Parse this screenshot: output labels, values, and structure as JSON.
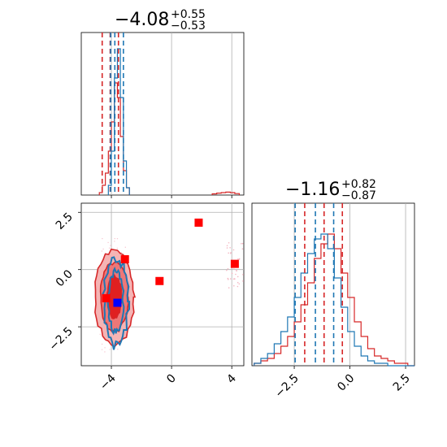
{
  "chart_data": {
    "type": "corner",
    "titles": {
      "param_1": {
        "median": "−4.08",
        "plus": "+0.55",
        "minus": "−0.53"
      },
      "param_2": {
        "median": "−1.16",
        "plus": "+0.82",
        "minus": "−0.87"
      }
    },
    "axes": {
      "x_range": [
        -6.0,
        4.8
      ],
      "y_range": [
        -4.2,
        2.9
      ],
      "x_ticks": [
        {
          "value": -4,
          "label": "−4"
        },
        {
          "value": 0,
          "label": "0"
        },
        {
          "value": 4,
          "label": "4"
        }
      ],
      "y_ticks": [
        {
          "value": 2.5,
          "label": "2.5"
        },
        {
          "value": 0.0,
          "label": "0.0"
        },
        {
          "value": -2.5,
          "label": "−2.5"
        }
      ],
      "p2_x_range": [
        -4.4,
        2.9
      ],
      "p2_x_ticks": [
        {
          "value": -2.5,
          "label": "−2.5"
        },
        {
          "value": 0.0,
          "label": "0.0"
        },
        {
          "value": 2.5,
          "label": "2.5"
        }
      ],
      "grid": true
    },
    "series": [
      {
        "color": "#d62728",
        "hist1_bins": [
          -4.8,
          -4.6,
          -4.4,
          -4.2,
          -4.0,
          -3.8,
          -3.6,
          -3.4,
          -3.2,
          -3.0
        ],
        "hist1_counts": [
          1,
          4,
          9,
          18,
          30,
          46,
          40,
          24,
          10,
          3
        ],
        "hist1_outlier_bins": [
          2.7,
          3.0,
          3.3,
          3.6,
          3.9,
          4.2
        ],
        "hist1_outlier_counts": [
          0.5,
          0.8,
          1.0,
          1.2,
          1.0,
          0.6
        ],
        "quantiles_p1": [
          -4.61,
          -4.08,
          -3.53
        ],
        "quantiles_p2": [
          -2.03,
          -1.16,
          -0.34
        ]
      },
      {
        "color": "#1f77b4",
        "hist1_bins": [
          -4.2,
          -4.0,
          -3.8,
          -3.6,
          -3.4,
          -3.2,
          -3.0
        ],
        "hist1_counts": [
          4,
          18,
          48,
          60,
          40,
          14,
          3
        ],
        "quantiles_p1": [
          -4.05,
          -3.77,
          -3.2
        ],
        "quantiles_p2": [
          -2.46,
          -1.55,
          -0.73
        ]
      }
    ],
    "hist2_bins": [
      -4.3,
      -4.0,
      -3.7,
      -3.4,
      -3.1,
      -2.8,
      -2.5,
      -2.2,
      -1.9,
      -1.6,
      -1.3,
      -1.0,
      -0.7,
      -0.4,
      -0.1,
      0.2,
      0.5,
      0.8,
      1.1,
      1.4,
      1.7,
      2.0,
      2.3,
      2.6
    ],
    "hist2_red": [
      1,
      2,
      3,
      5,
      8,
      12,
      18,
      25,
      34,
      44,
      50,
      54,
      48,
      38,
      28,
      18,
      12,
      7,
      4,
      3,
      2,
      1,
      1,
      0
    ],
    "hist2_blue": [
      1,
      3,
      5,
      9,
      14,
      20,
      28,
      38,
      46,
      52,
      54,
      48,
      36,
      24,
      14,
      8,
      4,
      2,
      1,
      1,
      0,
      0,
      0,
      0
    ],
    "points": [
      {
        "x": 1.8,
        "y": 2.05,
        "color": "#ff0000"
      },
      {
        "x": 4.2,
        "y": 0.25,
        "color": "#ff0000"
      },
      {
        "x": -3.1,
        "y": 0.45,
        "color": "#ff0000"
      },
      {
        "x": -0.8,
        "y": -0.5,
        "color": "#ff0000"
      },
      {
        "x": -4.35,
        "y": -1.25,
        "color": "#ff0000"
      },
      {
        "x": -3.6,
        "y": -1.45,
        "color": "#0000ff"
      }
    ]
  }
}
